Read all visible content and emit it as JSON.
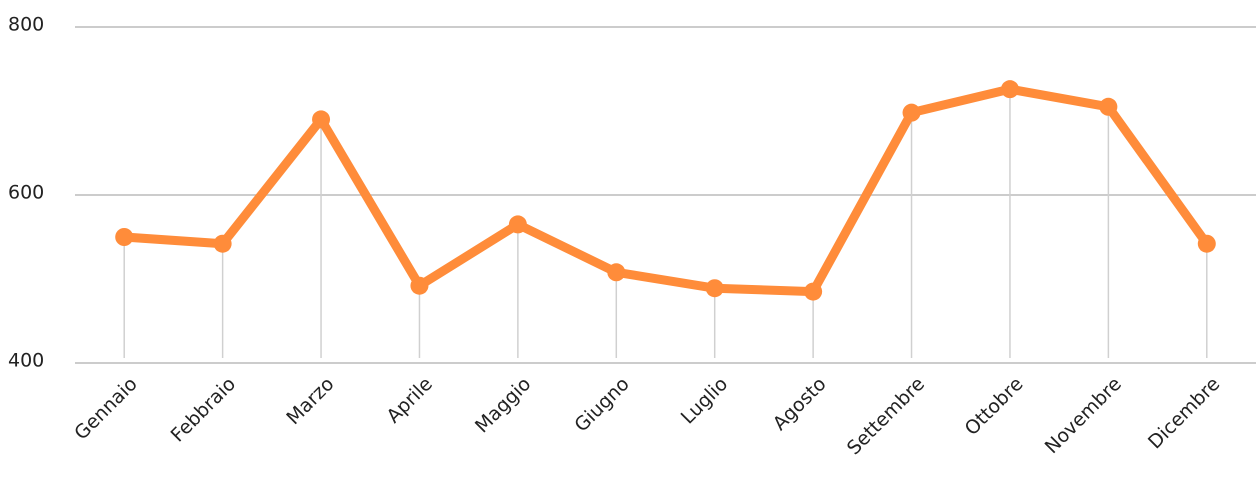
{
  "chart_data": {
    "type": "line",
    "categories": [
      "Gennaio",
      "Febbraio",
      "Marzo",
      "Aprile",
      "Maggio",
      "Giugno",
      "Luglio",
      "Agosto",
      "Settembre",
      "Ottobre",
      "Novembre",
      "Dicembre"
    ],
    "series": [
      {
        "color": "#ff8c3a",
        "values": [
          550,
          542,
          690,
          492,
          565,
          508,
          489,
          485,
          698,
          726,
          705,
          542
        ]
      }
    ],
    "ylim": [
      400,
      800
    ],
    "yticks": [
      400,
      600,
      800
    ],
    "grid": true
  }
}
